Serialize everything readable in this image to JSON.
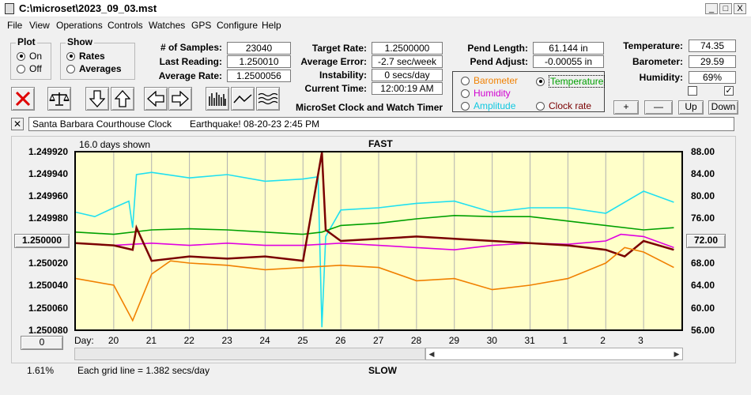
{
  "window": {
    "title": "C:\\microset\\2023_09_03.mst",
    "min": "_",
    "max": "□",
    "close": "X"
  },
  "menu": [
    "File",
    "View",
    "Operations",
    "Controls",
    "Watches",
    "GPS",
    "Configure",
    "Help"
  ],
  "plot_group": {
    "title": "Plot",
    "on": "On",
    "off": "Off",
    "selected": "On"
  },
  "show_group": {
    "title": "Show",
    "rates": "Rates",
    "averages": "Averages",
    "selected": "Rates"
  },
  "stats": {
    "samples_label": "# of Samples:",
    "samples": "23040",
    "last_label": "Last Reading:",
    "last": "1.250010",
    "avgrate_label": "Average Rate:",
    "avgrate": "1.2500056",
    "target_label": "Target Rate:",
    "target": "1.2500000",
    "avgerr_label": "Average Error:",
    "avgerr": "-2.7 sec/week",
    "instab_label": "Instability:",
    "instab": "0 secs/day",
    "time_label": "Current Time:",
    "time": "12:00:19 AM",
    "pendlen_label": "Pend Length:",
    "pendlen": "61.144 in",
    "pendadj_label": "Pend Adjust:",
    "pendadj": "-0.00055 in",
    "temp_label": "Temperature:",
    "temp": "74.35",
    "baro_label": "Barometer:",
    "baro": "29.59",
    "hum_label": "Humidity:",
    "hum": "69%"
  },
  "product_name": "MicroSet Clock and Watch Timer",
  "series_select": {
    "barometer": "Barometer",
    "temperature": "Temperature",
    "humidity": "Humidity",
    "amplitude": "Amplitude",
    "clock_rate": "Clock rate",
    "selected": "Temperature"
  },
  "side_buttons": {
    "plus": "+",
    "minus": "—",
    "up": "Up",
    "down": "Down"
  },
  "note": {
    "clock_name": "Santa Barbara Courthouse Clock",
    "event": "Earthquake! 08-20-23 2:45 PM"
  },
  "chart_data": {
    "type": "line",
    "days_shown": "16.0 days shown",
    "top_label": "FAST",
    "bottom_label": "SLOW",
    "grid_note": "Each grid line = 1.382 secs/day",
    "percent": "1.61%",
    "scroll_value": "0",
    "center_left": "1.250000",
    "center_right": "72.00",
    "y_left_ticks": [
      "1.249920",
      "1.249940",
      "1.249960",
      "1.249980",
      "1.250020",
      "1.250040",
      "1.250060",
      "1.250080"
    ],
    "y_right_ticks": [
      "88.00",
      "84.00",
      "80.00",
      "76.00",
      "68.00",
      "64.00",
      "60.00",
      "56.00"
    ],
    "x_title": "Day:",
    "x_ticks": [
      "20",
      "21",
      "22",
      "23",
      "24",
      "25",
      "26",
      "27",
      "28",
      "29",
      "30",
      "31",
      "1",
      "2",
      "3"
    ],
    "x_range": [
      19.0,
      35.0
    ],
    "colors": {
      "background": "#ffffc9",
      "rate": "#7a0000",
      "temperature": "#00a000",
      "humidity": "#e000e0",
      "amplitude": "#20e0f0",
      "barometer": "#f08000"
    },
    "series": [
      {
        "name": "Amplitude",
        "color": "#20e0f0",
        "x": [
          19,
          19.5,
          20,
          20.4,
          20.5,
          20.6,
          21,
          22,
          23,
          24,
          25,
          25.4,
          25.5,
          25.6,
          26,
          27,
          28,
          29,
          30,
          31,
          32,
          33,
          34,
          34.8
        ],
        "y": [
          1.249974,
          1.249978,
          1.24997,
          1.249964,
          1.249988,
          1.24994,
          1.249938,
          1.249943,
          1.24994,
          1.249946,
          1.249944,
          1.249942,
          1.250078,
          1.249996,
          1.249972,
          1.24997,
          1.249966,
          1.249964,
          1.249974,
          1.24997,
          1.24997,
          1.249975,
          1.249955,
          1.249965
        ]
      },
      {
        "name": "Temperature",
        "color": "#00a000",
        "x": [
          19,
          20,
          21,
          22,
          23,
          24,
          25,
          25.5,
          26,
          27,
          28,
          29,
          30,
          31,
          32,
          33,
          34,
          34.8
        ],
        "y": [
          1.249992,
          1.249994,
          1.24999,
          1.249989,
          1.24999,
          1.249992,
          1.249994,
          1.249992,
          1.249986,
          1.249984,
          1.24998,
          1.249977,
          1.249978,
          1.249978,
          1.249982,
          1.249986,
          1.24999,
          1.249988
        ]
      },
      {
        "name": "Humidity",
        "color": "#e000e0",
        "x": [
          19,
          20,
          21,
          22,
          23,
          24,
          25,
          26,
          27,
          28,
          29,
          30,
          31,
          32,
          33,
          33.4,
          34,
          34.8
        ],
        "y": [
          1.250002,
          1.250004,
          1.250002,
          1.250004,
          1.250002,
          1.250004,
          1.250004,
          1.250002,
          1.250004,
          1.250006,
          1.250008,
          1.250004,
          1.250002,
          1.250003,
          1.25,
          1.249994,
          1.249996,
          1.250006
        ]
      },
      {
        "name": "Rate",
        "color": "#7a0000",
        "x": [
          19,
          20,
          20.5,
          20.6,
          21,
          22,
          23,
          24,
          25,
          25.5,
          25.6,
          26,
          27,
          28,
          29,
          30,
          31,
          32,
          33,
          33.5,
          34,
          34.8
        ],
        "y": [
          1.250002,
          1.250004,
          1.250008,
          1.249988,
          1.250018,
          1.250014,
          1.250016,
          1.250014,
          1.250018,
          1.24992,
          1.24999,
          1.25,
          1.249998,
          1.249996,
          1.249998,
          1.25,
          1.250002,
          1.250004,
          1.250008,
          1.250014,
          1.25,
          1.250008
        ]
      },
      {
        "name": "Barometer",
        "color": "#f08000",
        "x": [
          19,
          20,
          20.5,
          21,
          21.5,
          22,
          23,
          24,
          25,
          26,
          27,
          28,
          29,
          30,
          31,
          32,
          33,
          33.5,
          34,
          34.8
        ],
        "y": [
          1.250034,
          1.25004,
          1.250072,
          1.25003,
          1.250018,
          1.25002,
          1.250022,
          1.250026,
          1.250024,
          1.250022,
          1.250024,
          1.250036,
          1.250034,
          1.250044,
          1.25004,
          1.250034,
          1.25002,
          1.250006,
          1.25001,
          1.250024
        ]
      }
    ]
  }
}
